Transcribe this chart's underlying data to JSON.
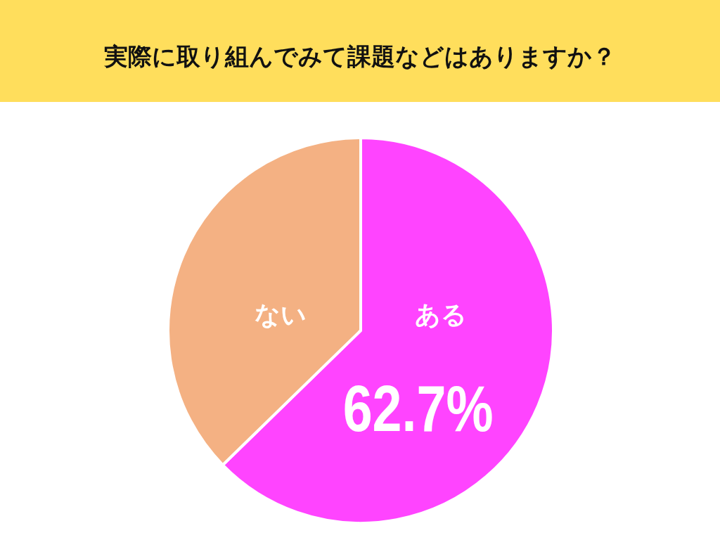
{
  "chart_data": {
    "type": "pie",
    "title": "実際に取り組んでみて課題などはありますか？",
    "categories": [
      "ある",
      "ない"
    ],
    "values": [
      62.7,
      37.3
    ],
    "colors": [
      "#ff44ff",
      "#f4b183"
    ],
    "value_labels": [
      "62.7%",
      null
    ]
  }
}
